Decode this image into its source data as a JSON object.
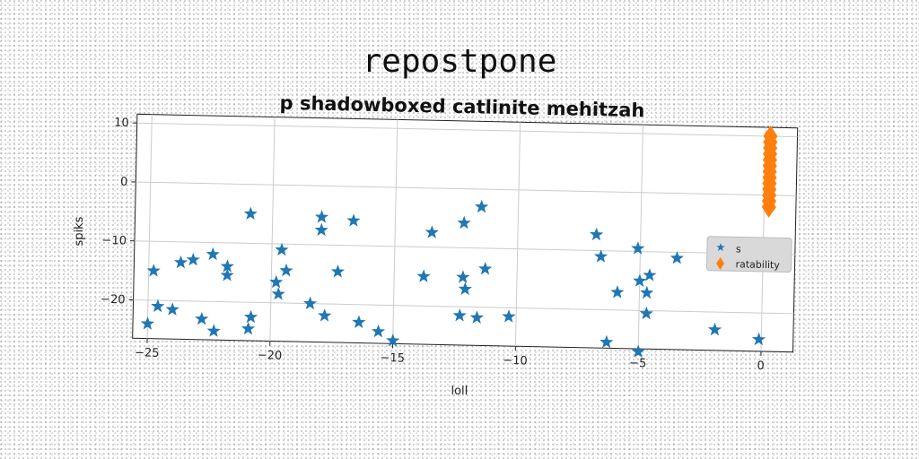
{
  "chart_data": {
    "type": "scatter",
    "suptitle": "repostpone",
    "title": "p shadowboxed catlinite mehitzah",
    "xlabel": "lolI",
    "ylabel": "spiks",
    "xlim": [
      -25.6,
      1.3
    ],
    "ylim": [
      -26.5,
      11.5
    ],
    "xticks": [
      -25,
      -20,
      -15,
      -10,
      -5,
      0
    ],
    "yticks": [
      -20,
      -10,
      0,
      10
    ],
    "grid": true,
    "legend_position": "center-right",
    "series": [
      {
        "name": "s",
        "marker": "star",
        "color": "#1f77b4",
        "points": [
          [
            -25,
            -24
          ],
          [
            -24.8,
            -15
          ],
          [
            -24.6,
            -21
          ],
          [
            -24,
            -21.5
          ],
          [
            -23.7,
            -13.5
          ],
          [
            -23.2,
            -13
          ],
          [
            -22.8,
            -23
          ],
          [
            -22.4,
            -12
          ],
          [
            -22.3,
            -25
          ],
          [
            -21.8,
            -14
          ],
          [
            -21.8,
            -15.5
          ],
          [
            -20.9,
            -24.5
          ],
          [
            -20.8,
            -22.5
          ],
          [
            -20.9,
            -5
          ],
          [
            -19.8,
            -16.5
          ],
          [
            -19.7,
            -18.5
          ],
          [
            -19.6,
            -11
          ],
          [
            -19.4,
            -14.5
          ],
          [
            -18.4,
            -20
          ],
          [
            -18,
            -7.5
          ],
          [
            -18,
            -5.3
          ],
          [
            -17.8,
            -22
          ],
          [
            -17.3,
            -14.5
          ],
          [
            -16.7,
            -5.8
          ],
          [
            -16.4,
            -23
          ],
          [
            -15.6,
            -24.5
          ],
          [
            -15,
            -26
          ],
          [
            -13.8,
            -15
          ],
          [
            -13.5,
            -7.5
          ],
          [
            -12.3,
            -21.5
          ],
          [
            -12.2,
            -5.8
          ],
          [
            -12.2,
            -15
          ],
          [
            -12.1,
            -17
          ],
          [
            -11.6,
            -21.8
          ],
          [
            -11.5,
            -3
          ],
          [
            -11.3,
            -13.5
          ],
          [
            -10.3,
            -21.5
          ],
          [
            -6.8,
            -7.3
          ],
          [
            -6.6,
            -11
          ],
          [
            -6.3,
            -25.5
          ],
          [
            -5.9,
            -17
          ],
          [
            -5.1,
            -9.5
          ],
          [
            -5,
            -27
          ],
          [
            -5,
            -15
          ],
          [
            -4.7,
            -17
          ],
          [
            -4.7,
            -20.5
          ],
          [
            -4.6,
            -14
          ],
          [
            -3.5,
            -11
          ],
          [
            -1.9,
            -23
          ],
          [
            -0.1,
            -24.5
          ]
        ]
      },
      {
        "name": "ratability",
        "marker": "thin_diamond",
        "color": "#ff7f0e",
        "points": [
          [
            0.2,
            -2
          ],
          [
            0.2,
            -1
          ],
          [
            0.2,
            0
          ],
          [
            0.2,
            1
          ],
          [
            0.2,
            2
          ],
          [
            0.2,
            3
          ],
          [
            0.2,
            4
          ],
          [
            0.2,
            5
          ],
          [
            0.2,
            6
          ],
          [
            0.2,
            7
          ],
          [
            0.2,
            8
          ],
          [
            0.2,
            9
          ],
          [
            0.2,
            10
          ]
        ]
      }
    ]
  }
}
